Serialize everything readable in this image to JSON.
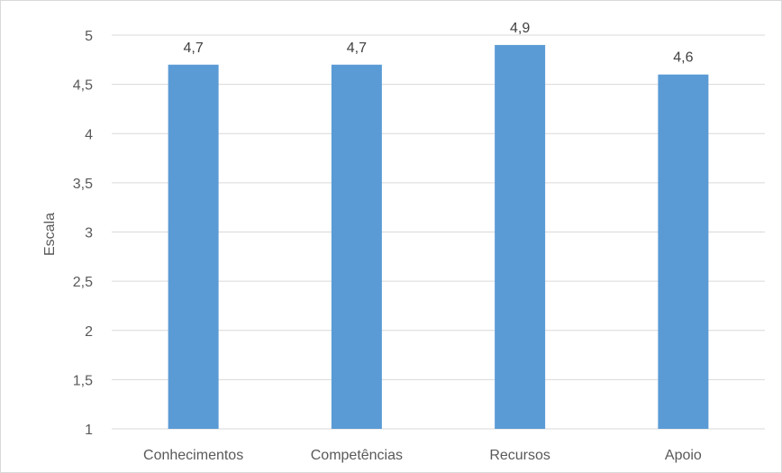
{
  "chart_data": {
    "type": "bar",
    "title": "",
    "xlabel": "",
    "ylabel": "Escala",
    "categories": [
      "Conhecimentos",
      "Competências",
      "Recursos",
      "Apoio"
    ],
    "values": [
      4.7,
      4.7,
      4.9,
      4.6
    ],
    "data_labels": [
      "4,7",
      "4,7",
      "4,9",
      "4,6"
    ],
    "ylim": [
      1,
      5
    ],
    "y_ticks": [
      1,
      1.5,
      2,
      2.5,
      3,
      3.5,
      4,
      4.5,
      5
    ],
    "y_tick_labels": [
      "1",
      "1,5",
      "2",
      "2,5",
      "3",
      "3,5",
      "4",
      "4,5",
      "5"
    ],
    "grid": true,
    "legend": "none",
    "bar_color": "#5b9bd5",
    "grid_color": "#d9d9d9"
  }
}
